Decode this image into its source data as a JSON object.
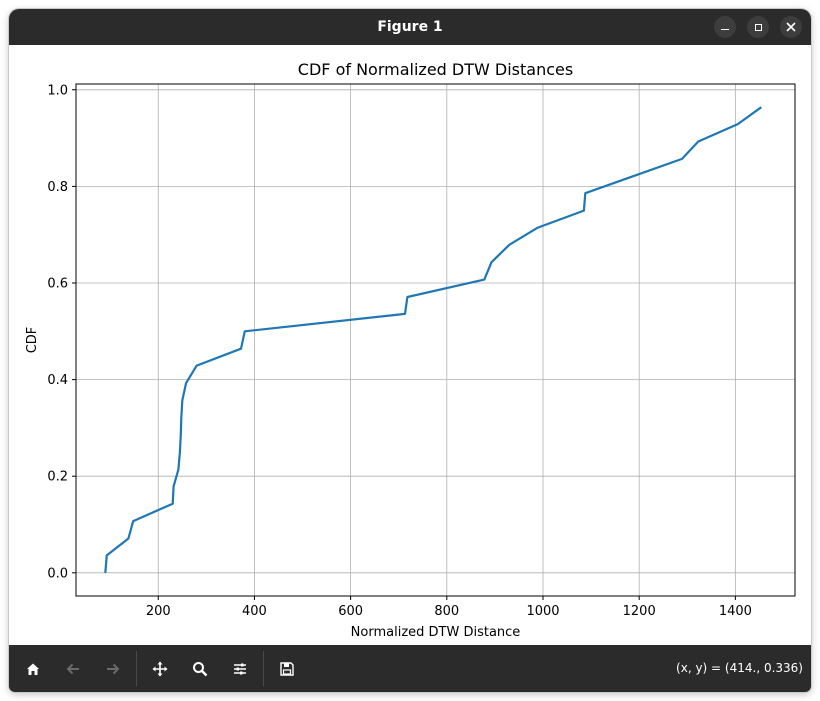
{
  "window": {
    "title": "Figure 1",
    "controls": {
      "minimize_icon": "minimize-icon",
      "maximize_icon": "maximize-icon",
      "close_icon": "close-icon"
    }
  },
  "toolbar": {
    "tools": [
      "home-icon",
      "back-arrow-icon",
      "forward-arrow-icon",
      "pan-move-icon",
      "zoom-magnifier-icon",
      "configure-subplots-icon",
      "save-floppy-icon"
    ],
    "coords_text": "(x, y) = (414., 0.336)"
  },
  "chart_data": {
    "type": "line",
    "title": "CDF of Normalized DTW Distances",
    "xlabel": "Normalized DTW Distance",
    "ylabel": "CDF",
    "xlim": [
      29,
      1524
    ],
    "ylim": [
      -0.048,
      1.012
    ],
    "x_ticks": [
      200,
      400,
      600,
      800,
      1000,
      1200,
      1400
    ],
    "y_ticks": [
      0.0,
      0.2,
      0.4,
      0.6,
      0.8,
      1.0
    ],
    "x_tick_labels": [
      "200",
      "400",
      "600",
      "800",
      "1000",
      "1200",
      "1400"
    ],
    "y_tick_labels": [
      "0.0",
      "0.2",
      "0.4",
      "0.6",
      "0.8",
      "1.0"
    ],
    "grid": true,
    "line_color": "#1f77b4",
    "series": [
      {
        "x": [
          90,
          93,
          138,
          148,
          230,
          232,
          242,
          245,
          247,
          248,
          250,
          258,
          280,
          372,
          380,
          713,
          718,
          878,
          893,
          930,
          988,
          1085,
          1088,
          1289,
          1323,
          1405,
          1454
        ],
        "y": [
          0.0,
          0.036,
          0.071,
          0.107,
          0.143,
          0.179,
          0.214,
          0.25,
          0.286,
          0.321,
          0.357,
          0.393,
          0.429,
          0.464,
          0.5,
          0.536,
          0.571,
          0.607,
          0.643,
          0.679,
          0.714,
          0.75,
          0.786,
          0.857,
          0.893,
          0.929,
          0.964
        ]
      }
    ]
  }
}
